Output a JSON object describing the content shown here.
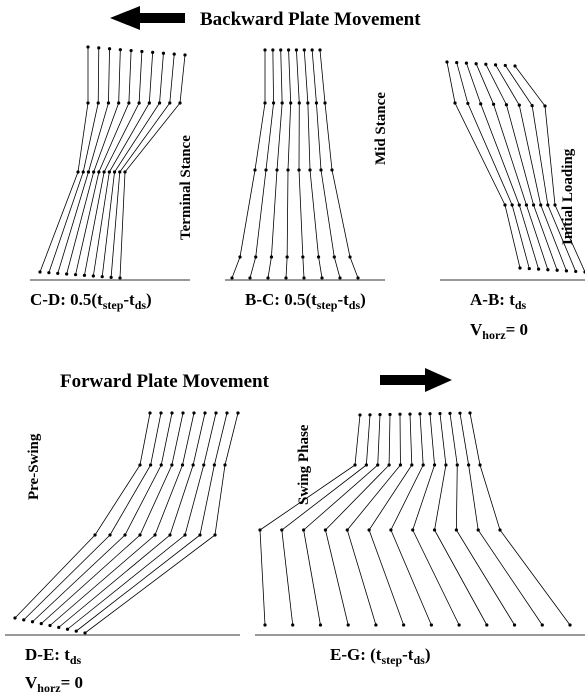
{
  "header": {
    "backward": "Backward Plate Movement",
    "forward": "Forward Plate Movement"
  },
  "phases": {
    "terminal": "Terminal Stance",
    "mid": "Mid Stance",
    "initial": "Initial Loading",
    "preswing": "Pre-Swing",
    "swing": "Swing Phase"
  },
  "captions": {
    "cd": [
      "C-D: 0.5(t",
      "step",
      "-t",
      "ds",
      ")"
    ],
    "bc": [
      "B-C: 0.5(t",
      "step",
      "-t",
      "ds",
      ")"
    ],
    "ab": [
      "A-B: t",
      "ds"
    ],
    "ab_v": [
      "V",
      "horz",
      "= 0"
    ],
    "de": [
      "D-E: t",
      "ds"
    ],
    "de_v": [
      "V",
      "horz",
      "= 0"
    ],
    "eg": [
      "E-G: (t",
      "step",
      "-t",
      "ds",
      ")"
    ]
  }
}
